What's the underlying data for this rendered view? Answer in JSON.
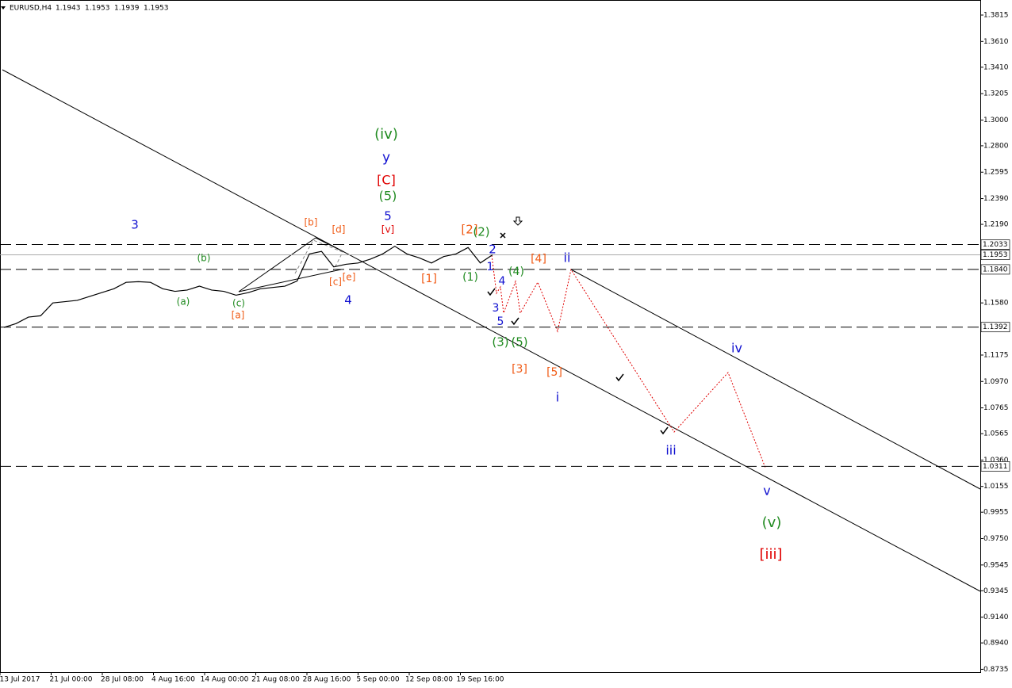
{
  "chart_data": {
    "type": "line",
    "symbol": "EURUSD,H4",
    "ohlc": [
      1.1943,
      1.1953,
      1.1939,
      1.1953
    ],
    "x_labels": [
      "13 Jul 2017",
      "21 Jul 00:00",
      "28 Jul 08:00",
      "4 Aug 16:00",
      "14 Aug 00:00",
      "21 Aug 08:00",
      "28 Aug 16:00",
      "5 Sep 00:00",
      "12 Sep 08:00",
      "19 Sep 16:00"
    ],
    "series": [
      {
        "color": "#000000",
        "values": [
          1.139,
          1.142,
          1.147,
          1.148,
          1.158,
          1.159,
          1.16,
          1.163,
          1.166,
          1.169,
          1.174,
          1.1745,
          1.174,
          1.169,
          1.167,
          1.168,
          1.171,
          1.168,
          1.167,
          1.164,
          1.166,
          1.169,
          1.17,
          1.171,
          1.175,
          1.196,
          1.198,
          1.186,
          1.188,
          1.189,
          1.192,
          1.196,
          1.202,
          1.196,
          1.193,
          1.189,
          1.194,
          1.196,
          1.201,
          1.189,
          1.1953
        ]
      }
    ],
    "ylim": [
      0.8713,
      1.3932
    ],
    "yticks": [
      1.3815,
      {
        "value": 1.361,
        "label": "1.3610"
      },
      {
        "value": 1.341,
        "label": "1.3410"
      },
      1.3205,
      {
        "value": 1.3,
        "label": "1.3000"
      },
      {
        "value": 1.28,
        "label": "1.2800"
      },
      1.2595,
      {
        "value": 1.239,
        "label": "1.2390"
      },
      {
        "value": 1.219,
        "label": "1.2190"
      },
      {
        "value": 1.158,
        "label": "1.1580"
      },
      1.1175,
      {
        "value": 1.097,
        "label": "1.0970"
      },
      1.0765,
      1.0565,
      {
        "value": 1.036,
        "label": "1.0360"
      },
      1.0155,
      0.9955,
      {
        "value": 0.975,
        "label": "0.9750"
      },
      0.9545,
      0.9345,
      {
        "value": 0.914,
        "label": "0.9140"
      },
      {
        "value": 0.894,
        "label": "0.8940"
      },
      0.8735
    ],
    "levels": [
      1.2033,
      1.1953,
      {
        "value": 1.184,
        "label": "1.1840"
      },
      1.1392,
      1.0311
    ],
    "annotations": [
      {
        "text": "(iv)",
        "color": "#1f8a1f"
      },
      {
        "text": "y",
        "color": "#1010d0"
      },
      {
        "text": "[C]",
        "color": "#e00000"
      },
      {
        "text": "(5)",
        "color": "#1f8a1f"
      },
      {
        "text": "5",
        "color": "#1010d0"
      },
      {
        "text": "3",
        "color": "#1010d0"
      },
      {
        "text": "[b]",
        "color": "#f05a14"
      },
      {
        "text": "[d]",
        "color": "#f05a14"
      },
      {
        "text": "[v]",
        "color": "#e00000"
      },
      {
        "text": "[2]",
        "color": "#f05a14"
      },
      {
        "text": "(2)",
        "color": "#1f8a1f"
      },
      {
        "text": "2",
        "color": "#1010d0"
      },
      {
        "text": "(b)",
        "color": "#1f8a1f"
      },
      {
        "text": "[4]",
        "color": "#f05a14"
      },
      {
        "text": "ii",
        "color": "#1010d0"
      },
      {
        "text": "(4)",
        "color": "#1f8a1f"
      },
      {
        "text": "[1]",
        "color": "#f05a14"
      },
      {
        "text": "(1)",
        "color": "#1f8a1f"
      },
      {
        "text": "1",
        "color": "#1010d0"
      },
      {
        "text": "4",
        "color": "#1010d0"
      },
      {
        "text": "[e]",
        "color": "#f05a14"
      },
      {
        "text": "[c]",
        "color": "#f05a14"
      },
      {
        "text": "4",
        "color": "#1010d0"
      },
      {
        "text": "(a)",
        "color": "#1f8a1f"
      },
      {
        "text": "(c)",
        "color": "#1f8a1f"
      },
      {
        "text": "[a]",
        "color": "#f05a14"
      },
      {
        "text": "3",
        "color": "#1010d0"
      },
      {
        "text": "5",
        "color": "#1010d0"
      },
      {
        "text": "(3)",
        "color": "#1f8a1f"
      },
      {
        "text": "(5)",
        "color": "#1f8a1f"
      },
      {
        "text": "iv",
        "color": "#1010d0"
      },
      {
        "text": "[3]",
        "color": "#f05a14"
      },
      {
        "text": "[5]",
        "color": "#f05a14"
      },
      {
        "text": "i",
        "color": "#1010d0"
      },
      {
        "text": "iii",
        "color": "#1010d0"
      },
      {
        "text": "v",
        "color": "#1010d0"
      },
      {
        "text": "(v)",
        "color": "#1f8a1f"
      },
      {
        "text": "[iii]",
        "color": "#e00000"
      }
    ]
  }
}
